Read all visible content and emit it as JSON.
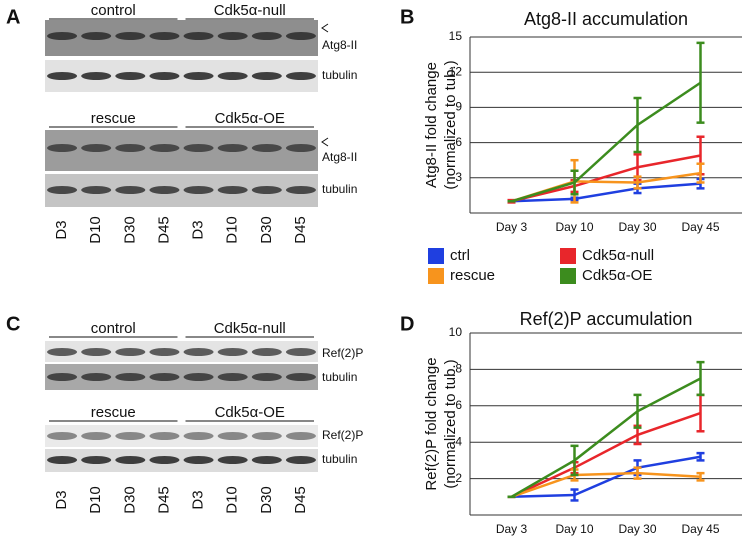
{
  "blots": [
    {
      "panel": "A",
      "lanes": [
        "D3",
        "D10",
        "D30",
        "D45",
        "D3",
        "D10",
        "D30",
        "D45"
      ],
      "sections": [
        {
          "groups": [
            "control",
            "Cdk5α-null"
          ],
          "rows": [
            "Atg8-II",
            "tubulin"
          ]
        },
        {
          "groups": [
            "rescue",
            "Cdk5α-OE"
          ],
          "rows": [
            "Atg8-II",
            "tubulin"
          ]
        }
      ]
    },
    {
      "panel": "C",
      "lanes": [
        "D3",
        "D10",
        "D30",
        "D45",
        "D3",
        "D10",
        "D30",
        "D45"
      ],
      "sections": [
        {
          "groups": [
            "control",
            "Cdk5α-null"
          ],
          "rows": [
            "Ref(2)P",
            "tubulin"
          ]
        },
        {
          "groups": [
            "rescue",
            "Cdk5α-OE"
          ],
          "rows": [
            "Ref(2)P",
            "tubulin"
          ]
        }
      ]
    }
  ],
  "chart_data": [
    {
      "type": "line",
      "panel": "B",
      "title": "Atg8-II accumulation",
      "ylabel": [
        "Atg8-II fold change",
        "(normalized to tub.)"
      ],
      "categories": [
        "Day 3",
        "Day 10",
        "Day 30",
        "Day 45"
      ],
      "ylim": [
        0,
        15
      ],
      "yticks": [
        3,
        6,
        9,
        12,
        15
      ],
      "grid": true,
      "series": [
        {
          "name": "ctrl",
          "color": "#1f3fe0",
          "values": [
            1,
            1.2,
            2.1,
            2.5
          ],
          "errors": [
            0,
            0.1,
            0.4,
            0.4
          ]
        },
        {
          "name": "Cdk5α-null",
          "color": "#e8262b",
          "values": [
            1,
            2.3,
            3.9,
            4.9
          ],
          "errors": [
            0.1,
            0.5,
            1.1,
            1.6
          ]
        },
        {
          "name": "rescue",
          "color": "#f7941d",
          "values": [
            1,
            2.7,
            2.6,
            3.4
          ],
          "errors": [
            0,
            1.8,
            0.5,
            0.8
          ]
        },
        {
          "name": "Cdk5α-OE",
          "color": "#3c8c1e",
          "values": [
            1,
            2.6,
            7.5,
            11.1
          ],
          "errors": [
            0,
            1,
            2.3,
            3.4
          ]
        }
      ]
    },
    {
      "type": "line",
      "panel": "D",
      "title": "Ref(2)P accumulation",
      "ylabel": [
        "Ref(2)P fold change",
        "(normalized to tub.)"
      ],
      "categories": [
        "Day 3",
        "Day 10",
        "Day 30",
        "Day 45"
      ],
      "ylim": [
        0,
        10
      ],
      "yticks": [
        2,
        4,
        6,
        8,
        10
      ],
      "grid": true,
      "series": [
        {
          "name": "ctrl",
          "color": "#1f3fe0",
          "values": [
            1,
            1.1,
            2.6,
            3.2
          ],
          "errors": [
            0,
            0.3,
            0.4,
            0.2
          ]
        },
        {
          "name": "Cdk5α-null",
          "color": "#e8262b",
          "values": [
            1,
            2.6,
            4.4,
            5.6
          ],
          "errors": [
            0,
            0.3,
            0.5,
            1
          ]
        },
        {
          "name": "rescue",
          "color": "#f7941d",
          "values": [
            1,
            2.2,
            2.3,
            2.1
          ],
          "errors": [
            0,
            0.3,
            0.3,
            0.2
          ]
        },
        {
          "name": "Cdk5α-OE",
          "color": "#3c8c1e",
          "values": [
            1,
            3,
            5.7,
            7.5
          ],
          "errors": [
            0,
            0.8,
            0.9,
            0.9
          ]
        }
      ]
    }
  ]
}
